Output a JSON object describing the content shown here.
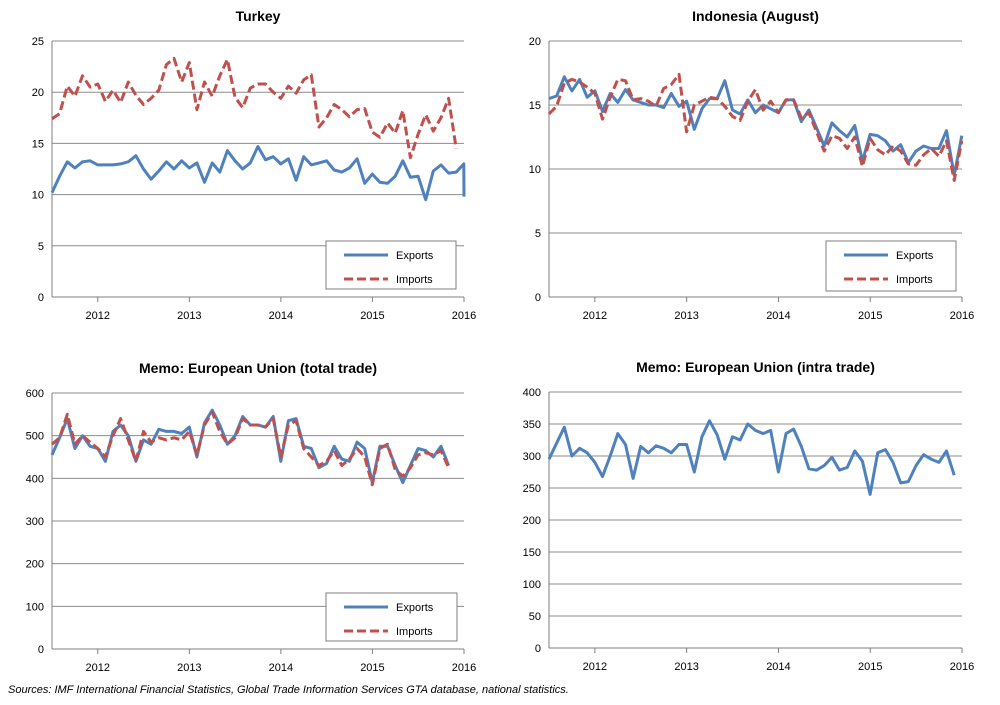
{
  "source_note": "Sources: IMF International Financial Statistics, Global Trade Information Services GTA database, national statistics.",
  "colors": {
    "exports": "#4f81bd",
    "imports": "#c0504d",
    "grid": "#8c8c8c",
    "axis": "#7f7f7f"
  },
  "chart_data": [
    {
      "type": "line",
      "title": "Turkey",
      "xlabel": "",
      "ylabel": "",
      "ylim": [
        0,
        25
      ],
      "yticks": [
        0,
        5,
        10,
        15,
        20,
        25
      ],
      "xlim": [
        2011.5,
        2016.0
      ],
      "xticks": [
        "2012",
        "2013",
        "2014",
        "2015",
        "2016"
      ],
      "grid": true,
      "legend": "bottom-right",
      "series": [
        {
          "name": "Exports",
          "color": "#4f81bd",
          "dash": false,
          "x_start": 2011.5,
          "x_step": 0.0833,
          "values": [
            10.2,
            11.8,
            13.2,
            12.6,
            13.2,
            13.3,
            12.9,
            12.9,
            12.9,
            13.0,
            13.2,
            13.8,
            12.5,
            11.5,
            12.3,
            13.2,
            12.5,
            13.3,
            12.6,
            13.1,
            11.2,
            13.1,
            12.2,
            14.3,
            13.3,
            12.5,
            13.1,
            14.7,
            13.4,
            13.7,
            13.0,
            13.5,
            11.4,
            13.7,
            12.9,
            13.1,
            13.3,
            12.4,
            12.2,
            12.6,
            13.5,
            11.1,
            12.0,
            11.2,
            11.1,
            11.8,
            13.3,
            11.7,
            11.8,
            9.5,
            12.3,
            12.9,
            12.1,
            12.2,
            13.0,
            9.8
          ]
        },
        {
          "name": "Imports",
          "color": "#c0504d",
          "dash": true,
          "x_start": 2011.5,
          "x_step": 0.0833,
          "values": [
            17.4,
            17.9,
            20.6,
            19.6,
            21.6,
            20.5,
            20.8,
            19.1,
            20.2,
            19.0,
            21.0,
            19.7,
            18.8,
            19.4,
            20.2,
            22.7,
            23.3,
            21.0,
            22.9,
            18.3,
            21.0,
            19.6,
            21.6,
            23.2,
            19.5,
            18.5,
            20.4,
            20.8,
            20.8,
            20.0,
            19.4,
            20.6,
            19.9,
            21.2,
            21.7,
            16.6,
            17.5,
            18.8,
            18.3,
            17.6,
            18.3,
            18.4,
            16.1,
            15.6,
            17.0,
            16.0,
            18.2,
            13.6,
            15.9,
            17.8,
            16.2,
            17.5,
            19.4,
            14.5
          ]
        }
      ]
    },
    {
      "type": "line",
      "title": "Indonesia (August)",
      "xlabel": "",
      "ylabel": "",
      "ylim": [
        0,
        20
      ],
      "yticks": [
        0,
        5,
        10,
        15,
        20
      ],
      "xlim": [
        2011.5,
        2016.0
      ],
      "xticks": [
        "2012",
        "2013",
        "2014",
        "2015",
        "2016"
      ],
      "grid": true,
      "legend": "bottom-right",
      "series": [
        {
          "name": "Exports",
          "color": "#4f81bd",
          "dash": false,
          "x_start": 2011.5,
          "x_step": 0.0833,
          "values": [
            15.5,
            15.7,
            17.2,
            16.1,
            17.0,
            15.6,
            16.1,
            14.5,
            15.9,
            15.2,
            16.2,
            15.4,
            15.2,
            15.0,
            15.0,
            14.8,
            15.9,
            14.9,
            15.3,
            13.1,
            14.7,
            15.5,
            15.5,
            16.9,
            14.6,
            14.3,
            15.4,
            14.4,
            15.0,
            14.7,
            14.4,
            15.4,
            15.4,
            13.7,
            14.6,
            13.2,
            11.8,
            13.6,
            13.0,
            12.5,
            13.4,
            10.6,
            12.7,
            12.6,
            12.2,
            11.4,
            11.9,
            10.5,
            11.4,
            11.8,
            11.6,
            11.6,
            13.0,
            9.5,
            12.6
          ]
        },
        {
          "name": "Imports",
          "color": "#c0504d",
          "dash": true,
          "x_start": 2011.5,
          "x_step": 0.0833,
          "values": [
            14.3,
            14.9,
            16.7,
            17.0,
            16.8,
            16.4,
            15.9,
            13.9,
            15.6,
            17.0,
            16.9,
            15.4,
            15.5,
            15.3,
            14.9,
            16.3,
            16.6,
            17.4,
            12.9,
            15.0,
            15.3,
            15.6,
            15.5,
            14.9,
            14.1,
            13.8,
            15.3,
            16.2,
            14.6,
            15.3,
            14.4,
            15.4,
            15.4,
            14.0,
            14.4,
            12.9,
            11.4,
            12.6,
            12.4,
            11.6,
            12.5,
            10.2,
            12.4,
            11.5,
            11.1,
            11.8,
            11.4,
            10.4,
            10.3,
            11.1,
            11.6,
            11.0,
            12.2,
            9.1,
            12.2
          ]
        }
      ]
    },
    {
      "type": "line",
      "title": "Memo: European Union (total trade)",
      "xlabel": "",
      "ylabel": "",
      "ylim": [
        0,
        600
      ],
      "yticks": [
        0,
        100,
        200,
        300,
        400,
        500,
        600
      ],
      "xlim": [
        2011.5,
        2016.0
      ],
      "xticks": [
        "2012",
        "2013",
        "2014",
        "2015",
        "2016"
      ],
      "grid": true,
      "legend": "bottom-right",
      "series": [
        {
          "name": "Exports",
          "color": "#4f81bd",
          "dash": false,
          "x_start": 2011.5,
          "x_step": 0.0833,
          "values": [
            455,
            495,
            540,
            470,
            500,
            475,
            470,
            440,
            510,
            525,
            500,
            440,
            490,
            480,
            515,
            510,
            510,
            505,
            520,
            450,
            530,
            560,
            525,
            480,
            500,
            545,
            525,
            525,
            520,
            545,
            440,
            535,
            540,
            475,
            470,
            425,
            435,
            475,
            445,
            440,
            485,
            470,
            390,
            475,
            475,
            430,
            390,
            430,
            470,
            465,
            450,
            475,
            430
          ]
        },
        {
          "name": "Imports",
          "color": "#c0504d",
          "dash": true,
          "x_start": 2011.5,
          "x_step": 0.0833,
          "values": [
            480,
            495,
            550,
            480,
            500,
            485,
            470,
            450,
            500,
            540,
            490,
            440,
            510,
            485,
            495,
            490,
            495,
            490,
            510,
            455,
            525,
            555,
            510,
            480,
            495,
            540,
            525,
            525,
            520,
            540,
            450,
            525,
            535,
            470,
            450,
            430,
            440,
            465,
            430,
            445,
            470,
            450,
            385,
            470,
            480,
            420,
            405,
            425,
            455,
            460,
            455,
            465,
            425
          ]
        }
      ]
    },
    {
      "type": "line",
      "title": "Memo: European Union (intra trade)",
      "xlabel": "",
      "ylabel": "",
      "ylim": [
        0,
        400
      ],
      "yticks": [
        0,
        50,
        100,
        150,
        200,
        250,
        300,
        350,
        400
      ],
      "xlim": [
        2011.5,
        2016.0
      ],
      "xticks": [
        "2012",
        "2013",
        "2014",
        "2015",
        "2016"
      ],
      "grid": true,
      "legend": "none",
      "series": [
        {
          "name": "",
          "color": "#4f81bd",
          "dash": false,
          "x_start": 2011.5,
          "x_step": 0.0833,
          "values": [
            295,
            320,
            345,
            300,
            312,
            305,
            290,
            268,
            300,
            335,
            318,
            265,
            315,
            305,
            316,
            312,
            305,
            318,
            318,
            275,
            330,
            355,
            333,
            295,
            330,
            325,
            350,
            340,
            335,
            340,
            275,
            335,
            342,
            315,
            280,
            278,
            285,
            298,
            278,
            282,
            308,
            292,
            240,
            305,
            310,
            290,
            258,
            260,
            285,
            302,
            295,
            290,
            308,
            270
          ]
        }
      ]
    }
  ]
}
